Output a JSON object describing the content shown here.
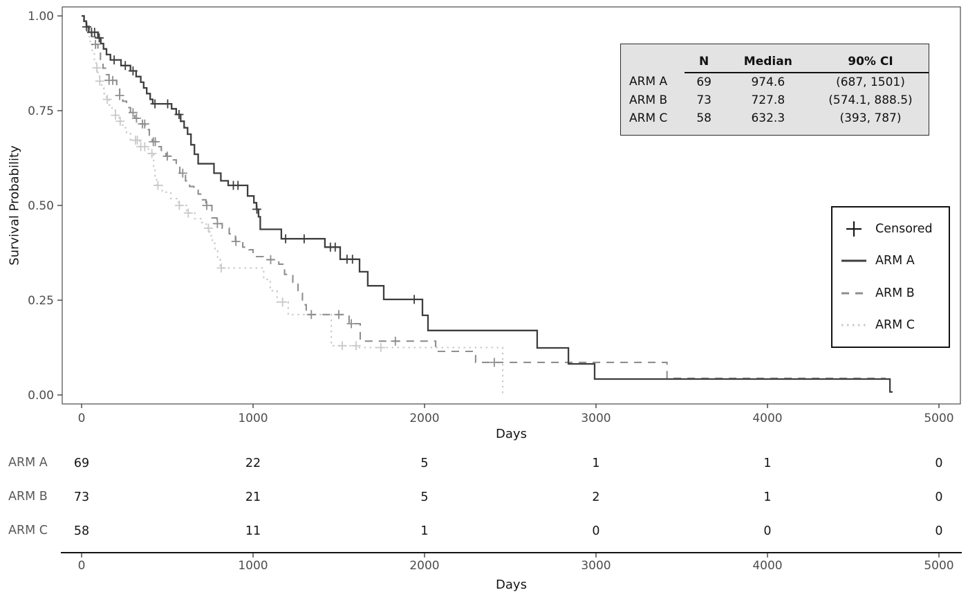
{
  "chart_data": {
    "type": "line",
    "subtype": "kaplan-meier-step",
    "title": "",
    "xlabel": "Days",
    "ylabel": "Survival Probability",
    "xlim": [
      0,
      5000
    ],
    "ylim": [
      0.0,
      1.0
    ],
    "grid": false,
    "x_ticks": [
      {
        "day": 0,
        "label": "0"
      },
      {
        "day": 1000,
        "label": "1000"
      },
      {
        "day": 2000,
        "label": "2000"
      },
      {
        "day": 3000,
        "label": "3000"
      },
      {
        "day": 4000,
        "label": "4000"
      },
      {
        "day": 5000,
        "label": "5000"
      }
    ],
    "y_ticks": [
      {
        "value": 1.0,
        "label": "1.00"
      },
      {
        "value": 0.75,
        "label": "0.75"
      },
      {
        "value": 0.5,
        "label": "0.50"
      },
      {
        "value": 0.25,
        "label": "0.25"
      },
      {
        "value": 0.0,
        "label": "0.00"
      }
    ],
    "series": [
      {
        "name": "ARM A",
        "style": "solid",
        "color": "#3e3e3e",
        "width": 2.3,
        "dash": "",
        "end_day": 4730,
        "steps": [
          [
            0,
            1.0
          ],
          [
            14,
            0.986
          ],
          [
            28,
            0.971
          ],
          [
            42,
            0.957
          ],
          [
            95,
            0.942
          ],
          [
            112,
            0.927
          ],
          [
            128,
            0.913
          ],
          [
            145,
            0.898
          ],
          [
            168,
            0.884
          ],
          [
            230,
            0.869
          ],
          [
            285,
            0.855
          ],
          [
            318,
            0.84
          ],
          [
            345,
            0.825
          ],
          [
            362,
            0.81
          ],
          [
            380,
            0.795
          ],
          [
            400,
            0.78
          ],
          [
            415,
            0.768
          ],
          [
            525,
            0.755
          ],
          [
            552,
            0.74
          ],
          [
            578,
            0.722
          ],
          [
            598,
            0.705
          ],
          [
            618,
            0.688
          ],
          [
            638,
            0.66
          ],
          [
            658,
            0.635
          ],
          [
            680,
            0.61
          ],
          [
            772,
            0.585
          ],
          [
            812,
            0.565
          ],
          [
            855,
            0.553
          ],
          [
            968,
            0.525
          ],
          [
            1005,
            0.507
          ],
          [
            1020,
            0.49
          ],
          [
            1032,
            0.47
          ],
          [
            1042,
            0.437
          ],
          [
            1165,
            0.412
          ],
          [
            1419,
            0.39
          ],
          [
            1508,
            0.358
          ],
          [
            1621,
            0.325
          ],
          [
            1669,
            0.288
          ],
          [
            1762,
            0.252
          ],
          [
            1988,
            0.21
          ],
          [
            2020,
            0.17
          ],
          [
            2657,
            0.124
          ],
          [
            2839,
            0.082
          ],
          [
            2992,
            0.042
          ],
          [
            4714,
            0.008
          ]
        ],
        "censored": [
          [
            30,
            0.971
          ],
          [
            58,
            0.957
          ],
          [
            76,
            0.957
          ],
          [
            103,
            0.942
          ],
          [
            190,
            0.884
          ],
          [
            255,
            0.869
          ],
          [
            300,
            0.855
          ],
          [
            428,
            0.768
          ],
          [
            502,
            0.768
          ],
          [
            568,
            0.74
          ],
          [
            885,
            0.553
          ],
          [
            912,
            0.553
          ],
          [
            1022,
            0.49
          ],
          [
            1190,
            0.412
          ],
          [
            1298,
            0.412
          ],
          [
            1451,
            0.39
          ],
          [
            1479,
            0.39
          ],
          [
            1548,
            0.358
          ],
          [
            1580,
            0.358
          ],
          [
            1940,
            0.252
          ]
        ]
      },
      {
        "name": "ARM B",
        "style": "dashed",
        "color": "#8e8e8e",
        "width": 2.1,
        "dash": "11 9",
        "end_day": 4690,
        "steps": [
          [
            0,
            1.0
          ],
          [
            15,
            0.986
          ],
          [
            30,
            0.973
          ],
          [
            45,
            0.959
          ],
          [
            60,
            0.945
          ],
          [
            80,
            0.925
          ],
          [
            95,
            0.905
          ],
          [
            110,
            0.885
          ],
          [
            125,
            0.862
          ],
          [
            140,
            0.845
          ],
          [
            160,
            0.83
          ],
          [
            205,
            0.81
          ],
          [
            222,
            0.79
          ],
          [
            240,
            0.775
          ],
          [
            262,
            0.758
          ],
          [
            285,
            0.745
          ],
          [
            310,
            0.73
          ],
          [
            343,
            0.715
          ],
          [
            370,
            0.7
          ],
          [
            395,
            0.685
          ],
          [
            412,
            0.668
          ],
          [
            440,
            0.655
          ],
          [
            465,
            0.645
          ],
          [
            492,
            0.63
          ],
          [
            520,
            0.62
          ],
          [
            552,
            0.605
          ],
          [
            573,
            0.585
          ],
          [
            606,
            0.565
          ],
          [
            630,
            0.55
          ],
          [
            655,
            0.54
          ],
          [
            680,
            0.53
          ],
          [
            705,
            0.515
          ],
          [
            725,
            0.5
          ],
          [
            760,
            0.467
          ],
          [
            790,
            0.452
          ],
          [
            820,
            0.44
          ],
          [
            861,
            0.425
          ],
          [
            897,
            0.405
          ],
          [
            940,
            0.39
          ],
          [
            976,
            0.383
          ],
          [
            1000,
            0.365
          ],
          [
            1060,
            0.357
          ],
          [
            1150,
            0.345
          ],
          [
            1184,
            0.318
          ],
          [
            1232,
            0.297
          ],
          [
            1262,
            0.268
          ],
          [
            1288,
            0.238
          ],
          [
            1310,
            0.212
          ],
          [
            1560,
            0.188
          ],
          [
            1625,
            0.142
          ],
          [
            2065,
            0.115
          ],
          [
            2298,
            0.086
          ],
          [
            3414,
            0.044
          ]
        ],
        "censored": [
          [
            81,
            0.925
          ],
          [
            160,
            0.83
          ],
          [
            182,
            0.83
          ],
          [
            222,
            0.79
          ],
          [
            300,
            0.745
          ],
          [
            320,
            0.73
          ],
          [
            355,
            0.715
          ],
          [
            368,
            0.715
          ],
          [
            418,
            0.668
          ],
          [
            430,
            0.668
          ],
          [
            500,
            0.63
          ],
          [
            590,
            0.585
          ],
          [
            730,
            0.5
          ],
          [
            792,
            0.452
          ],
          [
            900,
            0.405
          ],
          [
            1103,
            0.357
          ],
          [
            1340,
            0.212
          ],
          [
            1500,
            0.212
          ],
          [
            1573,
            0.188
          ],
          [
            1830,
            0.142
          ],
          [
            2407,
            0.086
          ]
        ]
      },
      {
        "name": "ARM C",
        "style": "dotted",
        "color": "#c9c9c9",
        "width": 2.1,
        "dash": "2.5 5.5",
        "end_day": 2456,
        "steps": [
          [
            0,
            1.0
          ],
          [
            12,
            0.982
          ],
          [
            25,
            0.963
          ],
          [
            38,
            0.945
          ],
          [
            50,
            0.925
          ],
          [
            62,
            0.905
          ],
          [
            74,
            0.885
          ],
          [
            85,
            0.863
          ],
          [
            95,
            0.845
          ],
          [
            105,
            0.828
          ],
          [
            118,
            0.81
          ],
          [
            130,
            0.795
          ],
          [
            145,
            0.78
          ],
          [
            160,
            0.765
          ],
          [
            178,
            0.752
          ],
          [
            196,
            0.738
          ],
          [
            218,
            0.722
          ],
          [
            240,
            0.705
          ],
          [
            262,
            0.69
          ],
          [
            285,
            0.672
          ],
          [
            340,
            0.655
          ],
          [
            390,
            0.637
          ],
          [
            420,
            0.6
          ],
          [
            428,
            0.575
          ],
          [
            437,
            0.553
          ],
          [
            470,
            0.535
          ],
          [
            520,
            0.518
          ],
          [
            565,
            0.5
          ],
          [
            613,
            0.48
          ],
          [
            660,
            0.465
          ],
          [
            700,
            0.455
          ],
          [
            727,
            0.44
          ],
          [
            747,
            0.42
          ],
          [
            762,
            0.4
          ],
          [
            778,
            0.38
          ],
          [
            793,
            0.358
          ],
          [
            808,
            0.335
          ],
          [
            1062,
            0.305
          ],
          [
            1100,
            0.275
          ],
          [
            1140,
            0.245
          ],
          [
            1205,
            0.212
          ],
          [
            1456,
            0.13
          ],
          [
            1620,
            0.125
          ],
          [
            2456,
            0.0
          ]
        ],
        "censored": [
          [
            89,
            0.863
          ],
          [
            106,
            0.828
          ],
          [
            150,
            0.78
          ],
          [
            197,
            0.738
          ],
          [
            225,
            0.722
          ],
          [
            315,
            0.672
          ],
          [
            325,
            0.672
          ],
          [
            345,
            0.655
          ],
          [
            368,
            0.655
          ],
          [
            410,
            0.637
          ],
          [
            445,
            0.553
          ],
          [
            570,
            0.5
          ],
          [
            622,
            0.48
          ],
          [
            740,
            0.44
          ],
          [
            815,
            0.335
          ],
          [
            1172,
            0.245
          ],
          [
            1520,
            0.13
          ],
          [
            1601,
            0.13
          ],
          [
            1745,
            0.125
          ]
        ]
      }
    ]
  },
  "axis_titles": {
    "y": "Survival Probability",
    "x_main": "Days",
    "x_risk": "Days"
  },
  "summary_table": {
    "headers": {
      "n": "N",
      "median": "Median",
      "ci": "90% CI"
    },
    "rows": [
      {
        "label": "ARM A",
        "n": "69",
        "median": "974.6",
        "ci": "(687, 1501)"
      },
      {
        "label": "ARM B",
        "n": "73",
        "median": "727.8",
        "ci": "(574.1, 888.5)"
      },
      {
        "label": "ARM C",
        "n": "58",
        "median": "632.3",
        "ci": "(393, 787)"
      }
    ]
  },
  "legend": {
    "censored_label": "Censored",
    "censored_color": "#1a1a1a",
    "items": [
      {
        "label": "ARM A"
      },
      {
        "label": "ARM B"
      },
      {
        "label": "ARM C"
      }
    ]
  },
  "risk_table": {
    "rows": [
      {
        "label": "ARM A",
        "counts": [
          "69",
          "22",
          "5",
          "1",
          "1",
          "0"
        ]
      },
      {
        "label": "ARM B",
        "counts": [
          "73",
          "21",
          "5",
          "2",
          "1",
          "0"
        ]
      },
      {
        "label": "ARM C",
        "counts": [
          "58",
          "11",
          "1",
          "0",
          "0",
          "0"
        ]
      }
    ]
  }
}
